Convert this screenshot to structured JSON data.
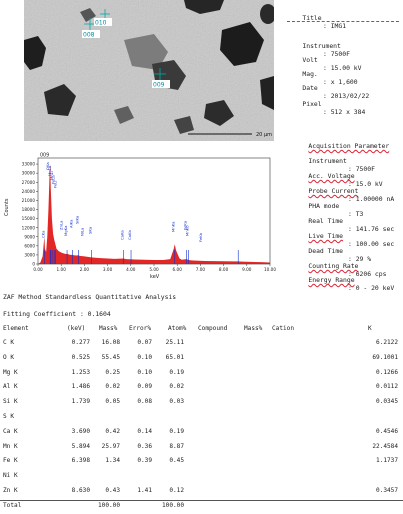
{
  "sem_image": {
    "scale_bar_label": "20 µm",
    "markers": [
      {
        "label": "008"
      },
      {
        "label": "010"
      },
      {
        "label": "009"
      }
    ]
  },
  "info_panel": {
    "rows": [
      {
        "key": "Title",
        "value": ": IMG1"
      },
      {
        "key": "Instrument",
        "value": ": 7500F"
      },
      {
        "key": "Volt",
        "value": ": 15.00 kV"
      },
      {
        "key": "Mag.",
        "value": ": x 1,600"
      },
      {
        "key": "Date",
        "value": ": 2013/02/22"
      },
      {
        "key": "Pixel",
        "value": ": 512 x 384"
      }
    ]
  },
  "acquisition": {
    "heading": "Acquisition Parameter",
    "rows": [
      {
        "key": "Instrument",
        "value": ": 7500F"
      },
      {
        "key": "Acc. Voltage",
        "value": ": 15.0 kV"
      },
      {
        "key": "Probe Current",
        "value": ": 1.00000 nA"
      },
      {
        "key": "PHA mode",
        "value": ": T3"
      },
      {
        "key": "Real Time",
        "value": ": 141.76 sec"
      },
      {
        "key": "Live Time",
        "value": ": 100.00 sec"
      },
      {
        "key": "Dead Time",
        "value": ": 29 %"
      },
      {
        "key": "Counting Rate",
        "value": ": 6206 cps"
      },
      {
        "key": "Energy Range",
        "value": ": 0 - 20 keV"
      }
    ]
  },
  "chart_data": {
    "type": "line",
    "title": "009",
    "ylabel": "Counts",
    "xlabel": "keV",
    "xlim": [
      0,
      10
    ],
    "ylim": [
      0,
      35000
    ],
    "yticks": [
      0,
      3000,
      6000,
      9000,
      12000,
      15000,
      18000,
      21000,
      24000,
      27000,
      30000,
      33000
    ],
    "xticks": [
      "0.00",
      "1.00",
      "2.00",
      "3.00",
      "4.00",
      "5.00",
      "6.00",
      "7.00",
      "8.00",
      "9.00",
      "10.00"
    ],
    "series": [
      {
        "x": [
          0,
          0.1,
          0.2,
          0.25,
          0.277,
          0.3,
          0.35,
          0.4,
          0.45,
          0.5,
          0.525,
          0.55,
          0.6,
          0.65,
          0.7,
          0.8,
          0.9,
          1.0,
          1.1,
          1.2,
          1.253,
          1.3,
          1.4,
          1.486,
          1.55,
          1.65,
          1.739,
          1.8,
          2.0,
          2.3,
          2.6,
          3.0,
          3.3,
          3.69,
          3.8,
          4.2,
          4.6,
          5.0,
          5.4,
          5.7,
          5.85,
          5.894,
          5.95,
          6.1,
          6.2,
          6.398,
          6.5,
          6.6,
          6.8,
          7.2,
          7.6,
          8.0,
          8.4,
          8.63,
          8.8,
          9.2,
          9.6,
          10.0
        ],
        "y": [
          0,
          500,
          2500,
          7000,
          9000,
          5000,
          4000,
          9000,
          18000,
          30000,
          33000,
          25000,
          15000,
          10000,
          8000,
          5000,
          4200,
          3800,
          3500,
          3300,
          3400,
          3200,
          3000,
          3000,
          2900,
          2800,
          2900,
          2700,
          2500,
          2200,
          2000,
          1800,
          1700,
          1800,
          1600,
          1500,
          1400,
          1300,
          1300,
          1600,
          5000,
          6500,
          4500,
          1800,
          1400,
          1600,
          1300,
          1200,
          1100,
          1000,
          950,
          900,
          850,
          880,
          800,
          700,
          600,
          500
        ]
      }
    ],
    "peak_labels": [
      "OKa",
      "MnLa",
      "MnLl",
      "CKa",
      "FeLa",
      "FeLl",
      "MgKa",
      "AlKa",
      "SiKa",
      "SKa",
      "NiLa",
      "ZnLa",
      "CaKa",
      "CaKb",
      "MnKa",
      "MnKb",
      "FeKa",
      "FeKb"
    ]
  },
  "zaf": {
    "title": "ZAF Method Standardless Quantitative Analysis",
    "fitting": "Fitting Coefficient : 0.1604",
    "headers": [
      "Element",
      "(keV)",
      "Mass%",
      "Error%",
      "Atom%",
      "Compound",
      "Mass%",
      "Cation",
      "K"
    ],
    "rows": [
      {
        "element": "C K",
        "kev": "0.277",
        "mass": "16.08",
        "error": "0.07",
        "atom": "25.11",
        "k": "6.2122"
      },
      {
        "element": "O K",
        "kev": "0.525",
        "mass": "55.45",
        "error": "0.10",
        "atom": "65.01",
        "k": "69.1001"
      },
      {
        "element": "Mg K",
        "kev": "1.253",
        "mass": "0.25",
        "error": "0.10",
        "atom": "0.19",
        "k": "0.1266"
      },
      {
        "element": "Al K",
        "kev": "1.486",
        "mass": "0.02",
        "error": "0.09",
        "atom": "0.02",
        "k": "0.0112"
      },
      {
        "element": "Si K",
        "kev": "1.739",
        "mass": "0.05",
        "error": "0.08",
        "atom": "0.03",
        "k": "0.0345"
      },
      {
        "element": "S K",
        "kev": "",
        "mass": "",
        "error": "",
        "atom": "",
        "k": ""
      },
      {
        "element": "Ca K",
        "kev": "3.690",
        "mass": "0.42",
        "error": "0.14",
        "atom": "0.19",
        "k": "0.4546"
      },
      {
        "element": "Mn K",
        "kev": "5.894",
        "mass": "25.97",
        "error": "0.36",
        "atom": "8.87",
        "k": "22.4584"
      },
      {
        "element": "Fe K",
        "kev": "6.398",
        "mass": "1.34",
        "error": "0.39",
        "atom": "0.45",
        "k": "1.1737"
      },
      {
        "element": "Ni K",
        "kev": "",
        "mass": "",
        "error": "",
        "atom": "",
        "k": ""
      },
      {
        "element": "Zn K",
        "kev": "8.630",
        "mass": "0.43",
        "error": "1.41",
        "atom": "0.12",
        "k": "0.3457"
      },
      {
        "element": "Total",
        "kev": "",
        "mass": "100.00",
        "error": "",
        "atom": "100.00",
        "k": ""
      }
    ]
  }
}
